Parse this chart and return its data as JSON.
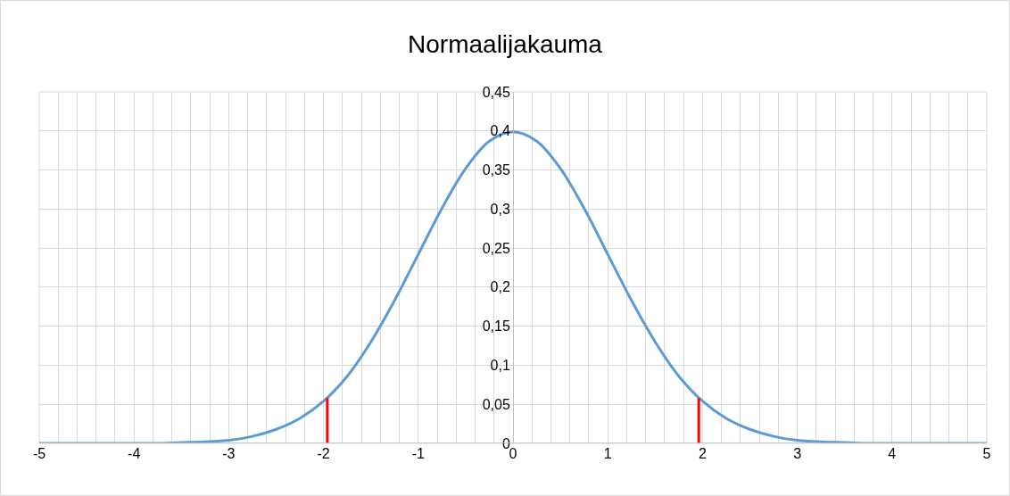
{
  "chart_data": {
    "type": "line",
    "title": "Normaalijakauma",
    "series": [
      {
        "color": "#5b9bd5",
        "x": [
          -5,
          -4.75,
          -4.5,
          -4.25,
          -4,
          -3.75,
          -3.5,
          -3.25,
          -3,
          -2.75,
          -2.5,
          -2.25,
          -2,
          -1.75,
          -1.5,
          -1.25,
          -1,
          -0.75,
          -0.5,
          -0.25,
          0,
          0.25,
          0.5,
          0.75,
          1,
          1.25,
          1.5,
          1.75,
          2,
          2.25,
          2.5,
          2.75,
          3,
          3.25,
          3.5,
          3.75,
          4,
          4.25,
          4.5,
          4.75,
          5
        ],
        "values": [
          0,
          0,
          0,
          0,
          0,
          0,
          0.001,
          0.002,
          0.004,
          0.009,
          0.018,
          0.032,
          0.054,
          0.086,
          0.13,
          0.183,
          0.242,
          0.301,
          0.352,
          0.387,
          0.399,
          0.387,
          0.352,
          0.301,
          0.242,
          0.183,
          0.13,
          0.086,
          0.054,
          0.032,
          0.018,
          0.009,
          0.004,
          0.002,
          0.001,
          0,
          0,
          0,
          0,
          0,
          0
        ]
      },
      {
        "color": "#ff0000",
        "x": [
          -1.96,
          -1.96
        ],
        "values": [
          0,
          0.058
        ]
      },
      {
        "color": "#ff0000",
        "x": [
          1.96,
          1.96
        ],
        "values": [
          0,
          0.058
        ]
      }
    ],
    "xlim": [
      -5,
      5
    ],
    "xticks": [
      -5,
      {
        "value": -4.8,
        "label": null
      },
      {
        "value": -4.6,
        "label": null
      },
      {
        "value": -4.4,
        "label": null
      },
      {
        "value": -4.2,
        "label": null
      },
      -4,
      {
        "value": -3.8,
        "label": null
      },
      {
        "value": -3.6,
        "label": null
      },
      {
        "value": -3.4,
        "label": null
      },
      {
        "value": -3.2,
        "label": null
      },
      -3,
      {
        "value": -2.8,
        "label": null
      },
      {
        "value": -2.6,
        "label": null
      },
      {
        "value": -2.4,
        "label": null
      },
      {
        "value": -2.2,
        "label": null
      },
      -2,
      {
        "value": -1.8,
        "label": null
      },
      {
        "value": -1.6,
        "label": null
      },
      {
        "value": -1.4,
        "label": null
      },
      {
        "value": -1.2,
        "label": null
      },
      -1,
      {
        "value": -0.8,
        "label": null
      },
      {
        "value": -0.6,
        "label": null
      },
      {
        "value": -0.4,
        "label": null
      },
      {
        "value": -0.2,
        "label": null
      },
      0,
      {
        "value": 0.2,
        "label": null
      },
      {
        "value": 0.4,
        "label": null
      },
      {
        "value": 0.6,
        "label": null
      },
      {
        "value": 0.8,
        "label": null
      },
      1,
      {
        "value": 1.2,
        "label": null
      },
      {
        "value": 1.4,
        "label": null
      },
      {
        "value": 1.6,
        "label": null
      },
      {
        "value": 1.8,
        "label": null
      },
      2,
      {
        "value": 2.2,
        "label": null
      },
      {
        "value": 2.4,
        "label": null
      },
      {
        "value": 2.6,
        "label": null
      },
      {
        "value": 2.8,
        "label": null
      },
      3,
      {
        "value": 3.2,
        "label": null
      },
      {
        "value": 3.4,
        "label": null
      },
      {
        "value": 3.6,
        "label": null
      },
      {
        "value": 3.8,
        "label": null
      },
      4,
      {
        "value": 4.2,
        "label": null
      },
      {
        "value": 4.4,
        "label": null
      },
      {
        "value": 4.6,
        "label": null
      },
      {
        "value": 4.8,
        "label": null
      },
      5
    ],
    "ylim": [
      0,
      0.45
    ],
    "yticks": [
      0,
      {
        "value": 0.05,
        "label": "0,05"
      },
      {
        "value": 0.1,
        "label": "0,1"
      },
      {
        "value": 0.15,
        "label": "0,15"
      },
      {
        "value": 0.2,
        "label": "0,2"
      },
      {
        "value": 0.25,
        "label": "0,25"
      },
      {
        "value": 0.3,
        "label": "0,3"
      },
      {
        "value": 0.35,
        "label": "0,35"
      },
      {
        "value": 0.4,
        "label": "0,4"
      },
      {
        "value": 0.45,
        "label": "0,45"
      }
    ],
    "grid": true,
    "marker": "none",
    "line_style": "solid"
  }
}
